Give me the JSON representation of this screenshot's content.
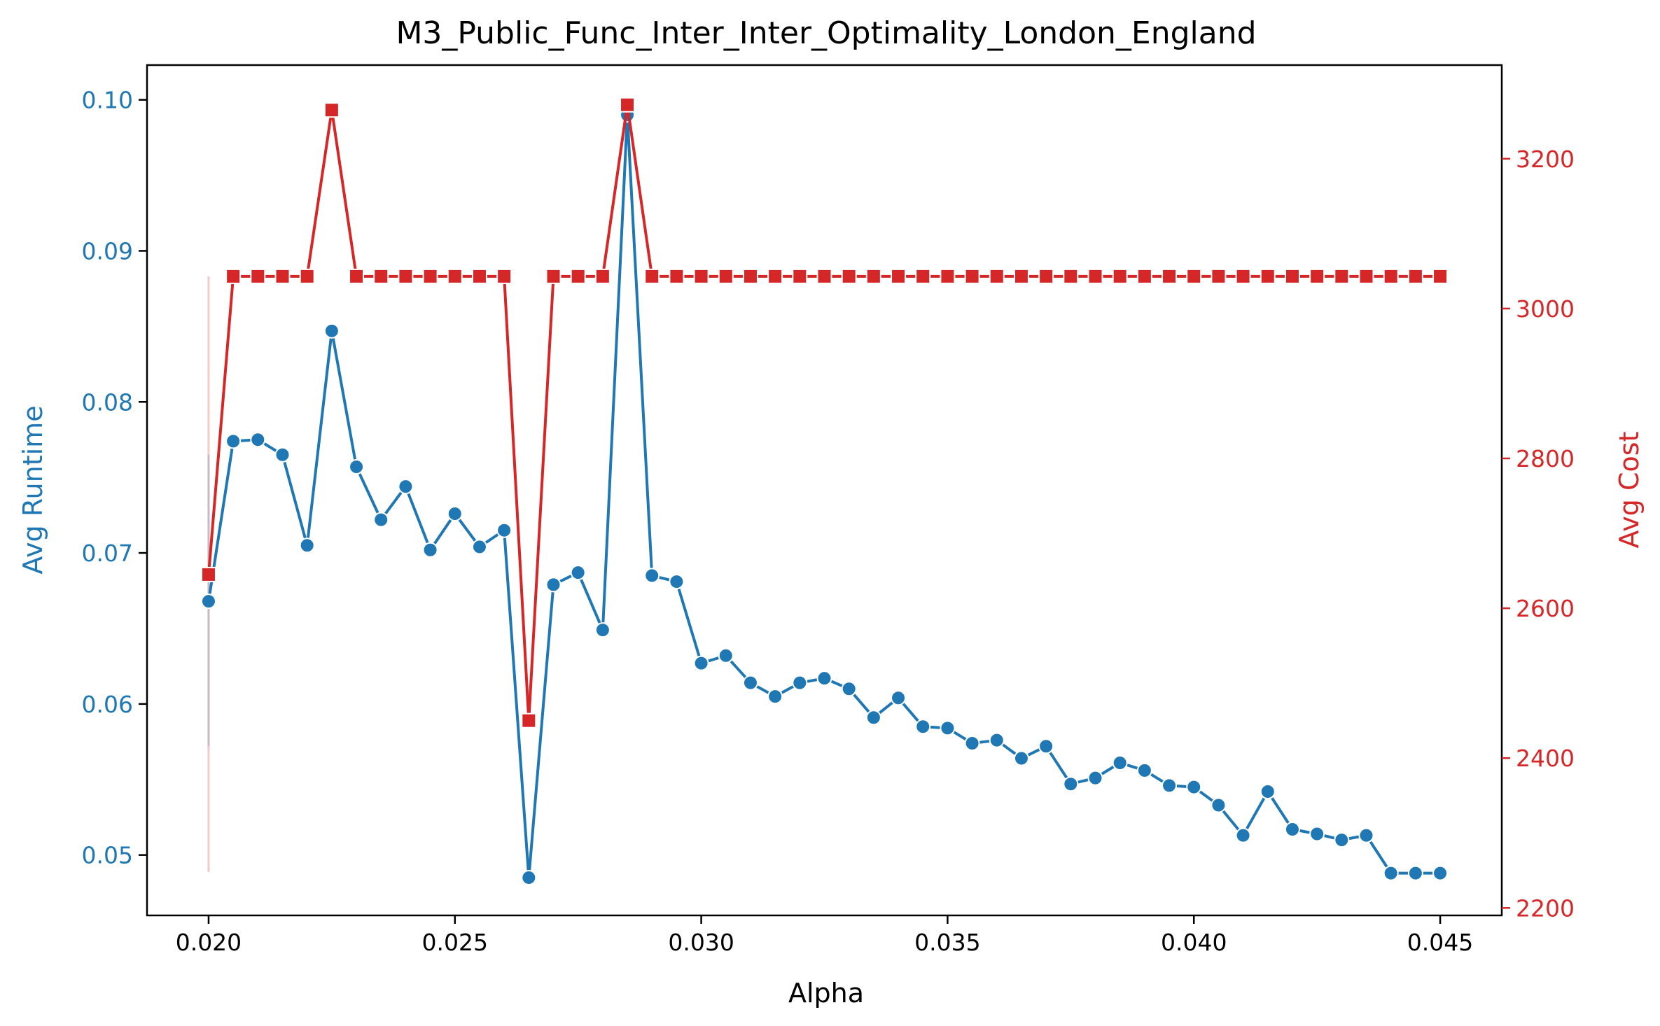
{
  "chart_data": {
    "type": "line",
    "title": "M3_Public_Func_Inter_Inter_Optimality_London_England",
    "xlabel": "Alpha",
    "ylabel_left": "Avg Runtime",
    "ylabel_right": "Avg Cost",
    "xlim": [
      0.01875,
      0.04625
    ],
    "ylim_left": [
      0.046,
      0.1023
    ],
    "ylim_right": [
      2190,
      3325
    ],
    "x_ticks": [
      "0.020",
      "0.025",
      "0.030",
      "0.035",
      "0.040",
      "0.045"
    ],
    "y_left_ticks": [
      "0.05",
      "0.06",
      "0.07",
      "0.08",
      "0.09",
      "0.10"
    ],
    "y_right_ticks": [
      "2200",
      "2400",
      "2600",
      "2800",
      "3000",
      "3200"
    ],
    "colors": {
      "runtime": "#1f77b4",
      "cost": "#d62728"
    },
    "x": [
      0.02,
      0.0205,
      0.021,
      0.0215,
      0.022,
      0.0225,
      0.023,
      0.0235,
      0.024,
      0.0245,
      0.025,
      0.0255,
      0.026,
      0.0265,
      0.027,
      0.0275,
      0.028,
      0.0285,
      0.029,
      0.0295,
      0.03,
      0.0305,
      0.031,
      0.0315,
      0.032,
      0.0325,
      0.033,
      0.0335,
      0.034,
      0.0345,
      0.035,
      0.0355,
      0.036,
      0.0365,
      0.037,
      0.0375,
      0.038,
      0.0385,
      0.039,
      0.0395,
      0.04,
      0.0405,
      0.041,
      0.0415,
      0.042,
      0.0425,
      0.043,
      0.0435,
      0.044,
      0.0445,
      0.045
    ],
    "series": [
      {
        "name": "Avg Runtime",
        "axis": "left",
        "marker": "circle",
        "values": [
          0.0668,
          0.0774,
          0.0775,
          0.0765,
          0.0705,
          0.0847,
          0.0757,
          0.0722,
          0.0744,
          0.0702,
          0.0726,
          0.0704,
          0.0715,
          0.0485,
          0.0679,
          0.0687,
          0.0649,
          0.099,
          0.0685,
          0.0681,
          0.0627,
          0.0632,
          0.0614,
          0.0605,
          0.0614,
          0.0617,
          0.061,
          0.0591,
          0.0604,
          0.0585,
          0.0584,
          0.0574,
          0.0576,
          0.0564,
          0.0572,
          0.0547,
          0.0551,
          0.0561,
          0.0556,
          0.0546,
          0.0545,
          0.0533,
          0.0513,
          0.0542,
          0.0517,
          0.0514,
          0.051,
          0.0513,
          0.0488,
          0.0488,
          0.0488
        ]
      },
      {
        "name": "Avg Cost",
        "axis": "right",
        "marker": "square",
        "values": [
          2645,
          3043,
          3043,
          3043,
          3043,
          3265,
          3043,
          3043,
          3043,
          3043,
          3043,
          3043,
          3043,
          2450,
          3043,
          3043,
          3043,
          3272,
          3043,
          3043,
          3043,
          3043,
          3043,
          3043,
          3043,
          3043,
          3043,
          3043,
          3043,
          3043,
          3043,
          3043,
          3043,
          3043,
          3043,
          3043,
          3043,
          3043,
          3043,
          3043,
          3043,
          3043,
          3043,
          3043,
          3043,
          3043,
          3043,
          3043,
          3043,
          3043,
          3043
        ]
      }
    ],
    "error_bars": [
      {
        "series": "Avg Cost",
        "x": 0.02,
        "low": 2248,
        "high": 3043
      },
      {
        "series": "Avg Runtime",
        "x": 0.02,
        "low": 0.0572,
        "high": 0.0765
      }
    ],
    "grid": false,
    "legend": "none"
  }
}
